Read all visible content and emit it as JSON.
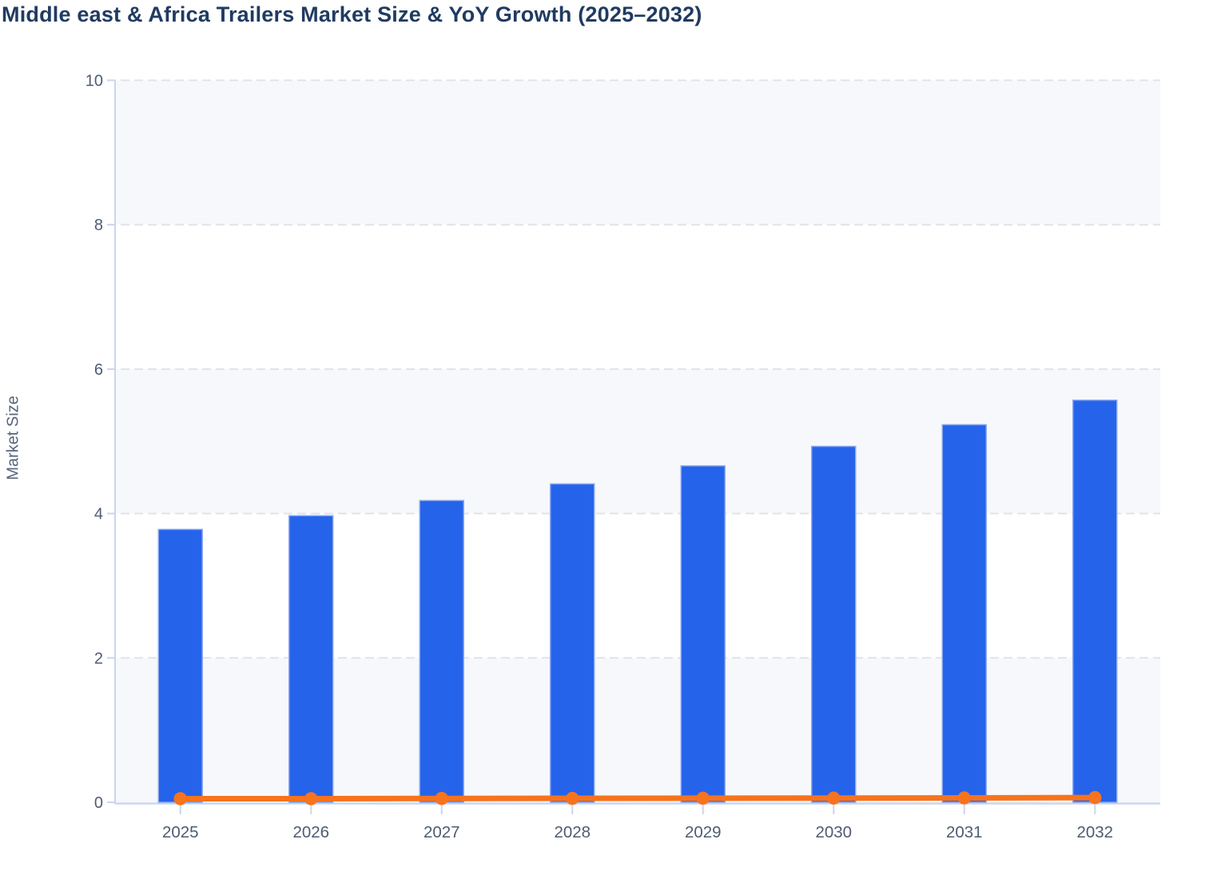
{
  "chart_data": {
    "type": "bar+line",
    "title": "Middle east & Africa Trailers Market Size & YoY Growth (2025–2032)",
    "ylabel": "Market Size",
    "xlabel": "",
    "ylim": [
      0,
      10
    ],
    "yticks": [
      0,
      2,
      4,
      6,
      8,
      10
    ],
    "categories": [
      "2025",
      "2026",
      "2027",
      "2028",
      "2029",
      "2030",
      "2031",
      "2032"
    ],
    "series": [
      {
        "name": "Market Size",
        "type": "bar",
        "color": "#2563eb",
        "values": [
          3.78,
          3.97,
          4.18,
          4.41,
          4.66,
          4.93,
          5.23,
          5.57
        ]
      },
      {
        "name": "YoY Growth",
        "type": "line",
        "color": "#f7731d",
        "values": [
          0.05,
          0.05,
          0.053,
          0.055,
          0.057,
          0.058,
          0.061,
          0.065
        ]
      }
    ],
    "legend": "none",
    "grid": "horizontal-dashed",
    "plot_bands": {
      "color": "#f7f8fb",
      "ranges": [
        [
          0,
          2
        ],
        [
          4,
          6
        ],
        [
          8,
          10
        ]
      ]
    },
    "colors": {
      "bar": "#2563eb",
      "bar_border": "#8aa9f0",
      "line": "#f7731d",
      "axis": "#ccd5ee",
      "grid": "#e0e3e9",
      "tick_label": "#4e5c72",
      "title": "#203b61",
      "band": "#f7f8fb",
      "background": "#ffffff"
    }
  }
}
